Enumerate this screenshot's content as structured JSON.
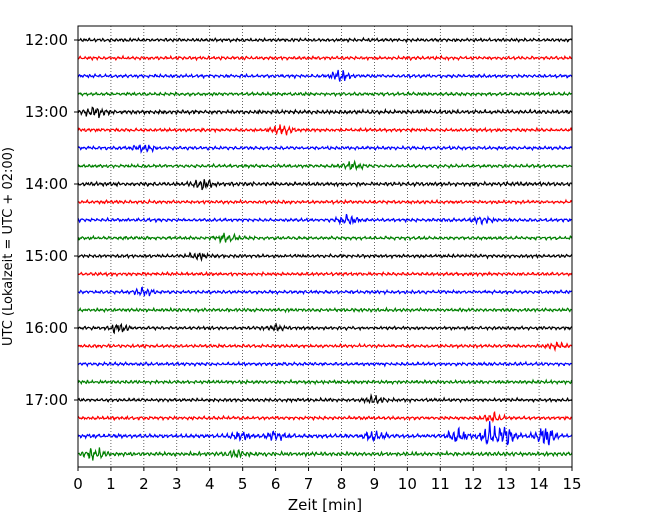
{
  "chart_data": {
    "type": "line",
    "title": "",
    "xlabel": "Zeit  [min]",
    "ylabel": "UTC (Lokalzeit = UTC + 02:00)",
    "xlim": [
      0,
      15
    ],
    "x_ticks": [
      0,
      1,
      2,
      3,
      4,
      5,
      6,
      7,
      8,
      9,
      10,
      11,
      12,
      13,
      14,
      15
    ],
    "y_ticks": [
      "12:00",
      "13:00",
      "14:00",
      "15:00",
      "16:00",
      "17:00"
    ],
    "grid": "vertical dotted",
    "trace_colors": [
      "#000000",
      "#ff0000",
      "#0000ff",
      "#008000"
    ],
    "traces": [
      {
        "start": "12:00",
        "color": "#000000",
        "amplitude": 0.25,
        "bursts": []
      },
      {
        "start": "12:15",
        "color": "#ff0000",
        "amplitude": 0.25,
        "bursts": []
      },
      {
        "start": "12:30",
        "color": "#0000ff",
        "amplitude": 0.25,
        "bursts": [
          [
            8.0,
            0.9
          ]
        ]
      },
      {
        "start": "12:45",
        "color": "#008000",
        "amplitude": 0.25,
        "bursts": []
      },
      {
        "start": "13:00",
        "color": "#000000",
        "amplitude": 0.3,
        "bursts": [
          [
            0.5,
            0.8
          ]
        ]
      },
      {
        "start": "13:15",
        "color": "#ff0000",
        "amplitude": 0.25,
        "bursts": [
          [
            6.2,
            0.7
          ]
        ]
      },
      {
        "start": "13:30",
        "color": "#0000ff",
        "amplitude": 0.25,
        "bursts": [
          [
            2.0,
            0.5
          ]
        ]
      },
      {
        "start": "13:45",
        "color": "#008000",
        "amplitude": 0.25,
        "bursts": [
          [
            8.3,
            0.6
          ]
        ]
      },
      {
        "start": "14:00",
        "color": "#000000",
        "amplitude": 0.3,
        "bursts": [
          [
            3.8,
            0.7
          ]
        ]
      },
      {
        "start": "14:15",
        "color": "#ff0000",
        "amplitude": 0.25,
        "bursts": []
      },
      {
        "start": "14:30",
        "color": "#0000ff",
        "amplitude": 0.25,
        "bursts": [
          [
            8.2,
            0.6
          ],
          [
            12.3,
            0.5
          ]
        ]
      },
      {
        "start": "14:45",
        "color": "#008000",
        "amplitude": 0.25,
        "bursts": [
          [
            4.5,
            0.6
          ]
        ]
      },
      {
        "start": "15:00",
        "color": "#000000",
        "amplitude": 0.25,
        "bursts": [
          [
            3.6,
            0.5
          ]
        ]
      },
      {
        "start": "15:15",
        "color": "#ff0000",
        "amplitude": 0.25,
        "bursts": []
      },
      {
        "start": "15:30",
        "color": "#0000ff",
        "amplitude": 0.25,
        "bursts": [
          [
            2.0,
            0.6
          ]
        ]
      },
      {
        "start": "15:45",
        "color": "#008000",
        "amplitude": 0.25,
        "bursts": []
      },
      {
        "start": "16:00",
        "color": "#000000",
        "amplitude": 0.25,
        "bursts": [
          [
            1.2,
            0.6
          ],
          [
            6.0,
            0.5
          ]
        ]
      },
      {
        "start": "16:15",
        "color": "#ff0000",
        "amplitude": 0.25,
        "bursts": [
          [
            14.5,
            0.5
          ]
        ]
      },
      {
        "start": "16:30",
        "color": "#0000ff",
        "amplitude": 0.25,
        "bursts": []
      },
      {
        "start": "16:45",
        "color": "#008000",
        "amplitude": 0.25,
        "bursts": []
      },
      {
        "start": "17:00",
        "color": "#000000",
        "amplitude": 0.25,
        "bursts": [
          [
            9.0,
            0.5
          ]
        ]
      },
      {
        "start": "17:15",
        "color": "#ff0000",
        "amplitude": 0.25,
        "bursts": [
          [
            12.6,
            0.6
          ]
        ]
      },
      {
        "start": "17:30",
        "color": "#0000ff",
        "amplitude": 0.3,
        "bursts": [
          [
            4.9,
            0.6
          ],
          [
            6.0,
            0.6
          ],
          [
            9.0,
            0.8
          ],
          [
            11.5,
            1.0
          ],
          [
            12.5,
            1.6
          ],
          [
            13.0,
            1.4
          ],
          [
            14.2,
            1.5
          ]
        ]
      },
      {
        "start": "17:45",
        "color": "#008000",
        "amplitude": 0.3,
        "bursts": [
          [
            0.5,
            0.7
          ],
          [
            4.8,
            0.5
          ]
        ]
      }
    ]
  }
}
